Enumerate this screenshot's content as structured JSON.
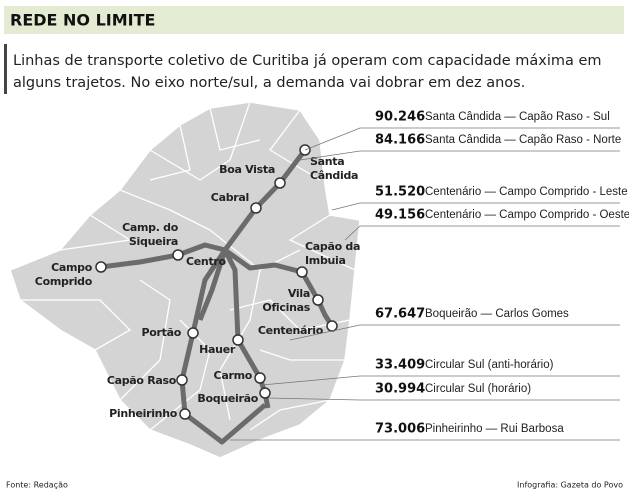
{
  "header": {
    "title": "REDE NO LIMITE",
    "subtitle": [
      "Linhas de transporte coletivo de Curitiba já operam com capacidade máxima em",
      "alguns trajetos. No eixo norte/sul, a demanda vai dobrar em dez anos."
    ]
  },
  "stations": [
    {
      "label": [
        "Santa",
        "Cândida"
      ]
    },
    {
      "label": [
        "Boa Vista"
      ]
    },
    {
      "label": [
        "Cabral"
      ]
    },
    {
      "label": [
        "Camp. do",
        "Siqueira"
      ]
    },
    {
      "label": [
        "Centro"
      ]
    },
    {
      "label": [
        "Campo",
        "Comprido"
      ]
    },
    {
      "label": [
        "Capão da",
        "Imbuia"
      ]
    },
    {
      "label": [
        "Vila",
        "Oficinas"
      ]
    },
    {
      "label": [
        "Centenário"
      ]
    },
    {
      "label": [
        "Portão"
      ]
    },
    {
      "label": [
        "Hauer"
      ]
    },
    {
      "label": [
        "Carmo"
      ]
    },
    {
      "label": [
        "Capão Raso"
      ]
    },
    {
      "label": [
        "Boqueirão"
      ]
    },
    {
      "label": [
        "Pinheirinho"
      ]
    }
  ],
  "lines": [
    {
      "demand": "90.246",
      "name": "Santa Cândida — Capão Raso - Sul"
    },
    {
      "demand": "84.166",
      "name": "Santa Cândida — Capão Raso - Norte"
    },
    {
      "demand": "51.520",
      "name": "Centenário — Campo Comprido - Leste"
    },
    {
      "demand": "49.156",
      "name": "Centenário — Campo Comprido - Oeste"
    },
    {
      "demand": "67.647",
      "name": "Boqueirão — Carlos Gomes"
    },
    {
      "demand": "33.409",
      "name": "Circular Sul (anti-horário)"
    },
    {
      "demand": "30.994",
      "name": "Circular Sul (horário)"
    },
    {
      "demand": "73.006",
      "name": "Pinheirinho — Rui Barbosa"
    }
  ],
  "footer": {
    "source": "Fonte: Redação",
    "credit": "Infografia: Gazeta do Povo"
  }
}
